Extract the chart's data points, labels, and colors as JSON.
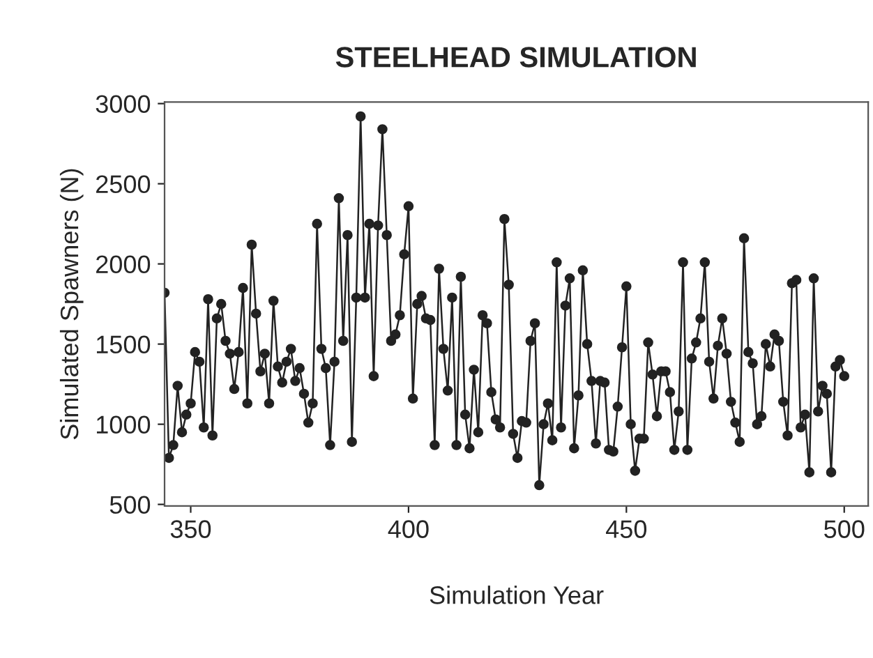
{
  "chart_data": {
    "type": "line",
    "title": "STEELHEAD SIMULATION",
    "xlabel": "Simulation Year",
    "ylabel": "Simulated Spawners (N)",
    "x": [
      344,
      345,
      346,
      347,
      348,
      349,
      350,
      351,
      352,
      353,
      354,
      355,
      356,
      357,
      358,
      359,
      360,
      361,
      362,
      363,
      364,
      365,
      366,
      367,
      368,
      369,
      370,
      371,
      372,
      373,
      374,
      375,
      376,
      377,
      378,
      379,
      380,
      381,
      382,
      383,
      384,
      385,
      386,
      387,
      388,
      389,
      390,
      391,
      392,
      393,
      394,
      395,
      396,
      397,
      398,
      399,
      400,
      401,
      402,
      403,
      404,
      405,
      406,
      407,
      408,
      409,
      410,
      411,
      412,
      413,
      414,
      415,
      416,
      417,
      418,
      419,
      420,
      421,
      422,
      423,
      424,
      425,
      426,
      427,
      428,
      429,
      430,
      431,
      432,
      433,
      434,
      435,
      436,
      437,
      438,
      439,
      440,
      441,
      442,
      443,
      444,
      445,
      446,
      447,
      448,
      449,
      450,
      451,
      452,
      453,
      454,
      455,
      456,
      457,
      458,
      459,
      460,
      461,
      462,
      463,
      464,
      465,
      466,
      467,
      468,
      469,
      470,
      471,
      472,
      473,
      474,
      475,
      476,
      477,
      478,
      479,
      480,
      481,
      482,
      483,
      484,
      485,
      486,
      487,
      488,
      489,
      490,
      491,
      492,
      493,
      494,
      495,
      496,
      497,
      498,
      499,
      500
    ],
    "series": [
      {
        "color": "#222222",
        "values": [
          1820,
          790,
          870,
          1240,
          950,
          1060,
          1130,
          1450,
          1390,
          980,
          1780,
          930,
          1660,
          1750,
          1520,
          1440,
          1220,
          1450,
          1850,
          1130,
          2120,
          1690,
          1330,
          1440,
          1130,
          1770,
          1360,
          1260,
          1390,
          1470,
          1270,
          1350,
          1190,
          1010,
          1130,
          2250,
          1470,
          1350,
          870,
          1390,
          2410,
          1520,
          2180,
          890,
          1790,
          2920,
          1790,
          2250,
          1300,
          2240,
          2840,
          2180,
          1520,
          1560,
          1680,
          2060,
          2360,
          1160,
          1750,
          1800,
          1660,
          1650,
          870,
          1970,
          1470,
          1210,
          1790,
          870,
          1920,
          1060,
          850,
          1340,
          950,
          1680,
          1630,
          1200,
          1030,
          980,
          2280,
          1870,
          940,
          790,
          1020,
          1010,
          1520,
          1630,
          620,
          1000,
          1130,
          900,
          2010,
          980,
          1740,
          1910,
          850,
          1180,
          1960,
          1500,
          1270,
          880,
          1270,
          1260,
          840,
          830,
          1110,
          1480,
          1860,
          1000,
          710,
          910,
          910,
          1510,
          1310,
          1050,
          1330,
          1330,
          1200,
          840,
          1080,
          2010,
          840,
          1410,
          1510,
          1660,
          2010,
          1390,
          1160,
          1490,
          1660,
          1440,
          1140,
          1010,
          890,
          2160,
          1450,
          1380,
          1000,
          1050,
          1500,
          1360,
          1560,
          1520,
          1140,
          930,
          1880,
          1900,
          980,
          1060,
          700,
          1910,
          1080,
          1240,
          1190,
          700,
          1360,
          1400,
          1300
        ]
      }
    ],
    "xlim": [
      344,
      505.5
    ],
    "ylim": [
      490,
      3010
    ],
    "xticks": [
      350,
      400,
      450,
      500
    ],
    "yticks": [
      500,
      1000,
      1500,
      2000,
      2500,
      3000
    ],
    "marker": "circle",
    "grid": false
  }
}
